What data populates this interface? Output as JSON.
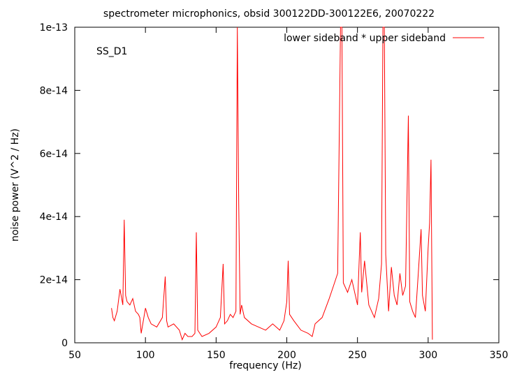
{
  "chart_data": {
    "type": "line",
    "title": "spectrometer microphonics, obsid 300122DD-300122E6, 20070222",
    "xlabel": "frequency (Hz)",
    "ylabel": "noise power (V^2 / Hz)",
    "annotation": "SS_D1",
    "xlim": [
      50,
      350
    ],
    "ylim": [
      0,
      1e-13
    ],
    "xticks": [
      50,
      100,
      150,
      200,
      250,
      300,
      350
    ],
    "xtick_labels": [
      "50",
      "100",
      "150",
      "200",
      "250",
      "300",
      "350"
    ],
    "yticks": [
      0,
      2e-14,
      4e-14,
      6e-14,
      8e-14,
      1e-13
    ],
    "ytick_labels": [
      "0",
      "2e-14",
      "4e-14",
      "6e-14",
      "8e-14",
      "1e-13"
    ],
    "grid": false,
    "legend_position": "top-right",
    "series": [
      {
        "name": "lower sideband * upper sideband",
        "color": "#ff0000",
        "x": [
          76,
          77,
          78,
          80,
          82,
          84,
          85,
          86,
          87,
          89,
          91,
          93,
          95,
          96,
          97,
          100,
          102,
          104,
          108,
          112,
          114,
          115,
          116,
          120,
          124,
          126,
          128,
          130,
          133,
          135,
          136,
          137,
          140,
          145,
          150,
          153,
          155,
          156,
          158,
          160,
          162,
          164,
          165,
          166,
          167,
          168,
          170,
          175,
          180,
          185,
          190,
          195,
          198,
          200,
          201,
          202,
          205,
          210,
          215,
          218,
          220,
          225,
          230,
          233,
          236,
          238,
          239,
          240,
          243,
          246,
          250,
          252,
          253,
          255,
          258,
          262,
          265,
          267,
          268,
          269,
          270,
          272,
          274,
          276,
          278,
          280,
          282,
          284,
          286,
          287,
          289,
          291,
          293,
          295,
          296,
          298,
          300,
          301,
          302,
          303
        ],
        "y": [
          1.1e-14,
          8e-15,
          7e-15,
          1e-14,
          1.7e-14,
          1.2e-14,
          3.9e-14,
          1.5e-14,
          1.3e-14,
          1.2e-14,
          1.4e-14,
          1e-14,
          9e-15,
          8e-15,
          3e-15,
          1.1e-14,
          8e-15,
          6e-15,
          5e-15,
          8e-15,
          2.1e-14,
          7e-15,
          5e-15,
          6e-15,
          4e-15,
          1e-15,
          3e-15,
          2e-15,
          2e-15,
          3e-15,
          3.5e-14,
          4e-15,
          2e-15,
          3e-15,
          5e-15,
          8e-15,
          2.5e-14,
          6e-15,
          7e-15,
          9e-15,
          8e-15,
          1e-14,
          1e-13,
          4.4e-14,
          9e-15,
          1.2e-14,
          8e-15,
          6e-15,
          5e-15,
          4e-15,
          6e-15,
          4e-15,
          7e-15,
          1.3e-14,
          2.6e-14,
          9e-15,
          7e-15,
          4e-15,
          3e-15,
          2e-15,
          6e-15,
          8e-15,
          1.4e-14,
          1.8e-14,
          2.2e-14,
          1e-13,
          1e-13,
          1.9e-14,
          1.6e-14,
          2e-14,
          1.2e-14,
          3.5e-14,
          1.6e-14,
          2.6e-14,
          1.2e-14,
          8e-15,
          1.4e-14,
          2.5e-14,
          1e-13,
          1e-13,
          2.8e-14,
          1e-14,
          2.4e-14,
          1.5e-14,
          1.2e-14,
          2.2e-14,
          1.5e-14,
          1.8e-14,
          7.2e-14,
          1.3e-14,
          1e-14,
          8e-15,
          2.2e-14,
          3.6e-14,
          1.5e-14,
          1e-14,
          3e-14,
          3.8e-14,
          5.8e-14,
          1e-15
        ]
      }
    ]
  }
}
